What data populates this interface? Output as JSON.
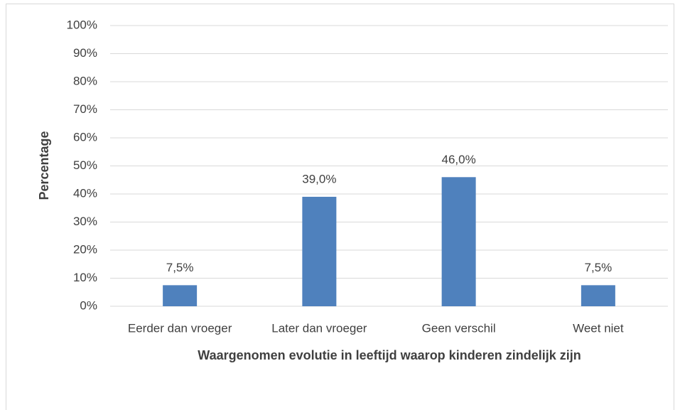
{
  "chart_data": {
    "type": "bar",
    "x_label": "Waargenomen evolutie in leeftijd waarop kinderen zindelijk zijn",
    "y_label": "Percentage",
    "categories": [
      "Eerder dan vroeger",
      "Later dan vroeger",
      "Geen verschil",
      "Weet niet"
    ],
    "values": [
      7.5,
      39,
      46,
      7.5
    ],
    "value_labels": [
      "7,5%",
      "39,0%",
      "46,0%",
      "7,5%"
    ],
    "color": "#4f81bd",
    "ylim": [
      0,
      100
    ],
    "yticks": [
      {
        "value": 0,
        "label": "0%"
      },
      {
        "value": 10,
        "label": "10%"
      },
      {
        "value": 20,
        "label": "20%"
      },
      {
        "value": 30,
        "label": "30%"
      },
      {
        "value": 40,
        "label": "40%"
      },
      {
        "value": 50,
        "label": "50%"
      },
      {
        "value": 60,
        "label": "60%"
      },
      {
        "value": 70,
        "label": "70%"
      },
      {
        "value": 80,
        "label": "80%"
      },
      {
        "value": 90,
        "label": "90%"
      },
      {
        "value": 100,
        "label": "100%"
      }
    ],
    "grid": true
  }
}
